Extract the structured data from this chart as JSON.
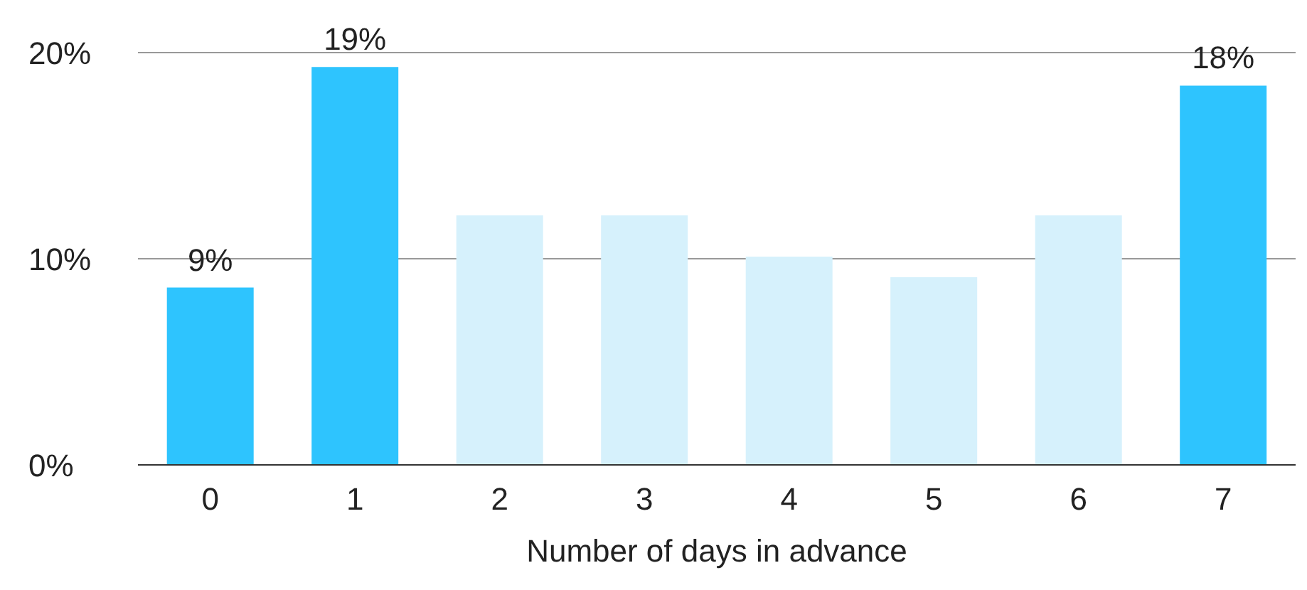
{
  "chart_data": {
    "type": "bar",
    "xlabel": "Number of days in advance",
    "categories": [
      "0",
      "1",
      "2",
      "3",
      "4",
      "5",
      "6",
      "7"
    ],
    "values": [
      8.6,
      19.3,
      12.1,
      12.1,
      10.1,
      9.1,
      12.1,
      18.4
    ],
    "colors": [
      "#2ec4fe",
      "#2ec4fe",
      "#d6f1fc",
      "#d6f1fc",
      "#d6f1fc",
      "#d6f1fc",
      "#d6f1fc",
      "#2ec4fe"
    ],
    "value_labels": [
      "9%",
      "19%",
      null,
      null,
      null,
      null,
      null,
      "18%"
    ],
    "ylim": [
      0,
      20
    ],
    "yticks": [
      {
        "value": 0,
        "label": "0%"
      },
      {
        "value": 10,
        "label": "10%"
      },
      {
        "value": 20,
        "label": "20%"
      }
    ],
    "grid": "y"
  }
}
